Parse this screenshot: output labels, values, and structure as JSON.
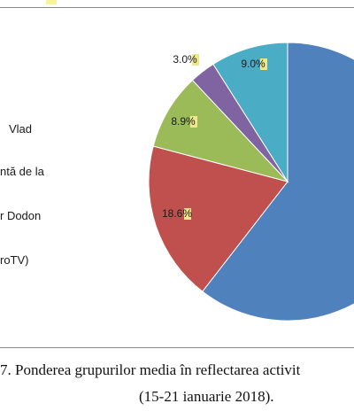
{
  "chart_data": {
    "type": "pie",
    "title": "",
    "slices": [
      {
        "value": 60.5,
        "label": "",
        "color": "#4f81bd"
      },
      {
        "value": 18.6,
        "label": "18.6%",
        "color": "#c0504d"
      },
      {
        "value": 8.9,
        "label": "8.9%",
        "color": "#9bbb59"
      },
      {
        "value": 3.0,
        "label": "3.0%",
        "color": "#8064a2"
      },
      {
        "value": 9.0,
        "label": "9.0%",
        "color": "#4bacc6"
      }
    ],
    "label_highlight_color": "#f0e68c",
    "legend": {
      "placement": "left",
      "entries": [
        "Vlad",
        "ntă de la",
        "r Dodon",
        "roTV)"
      ]
    }
  },
  "caption": {
    "line1": "7. Ponderea grupurilor media în reflectarea activit",
    "line2": "(15-21 ianuarie 2018)."
  }
}
